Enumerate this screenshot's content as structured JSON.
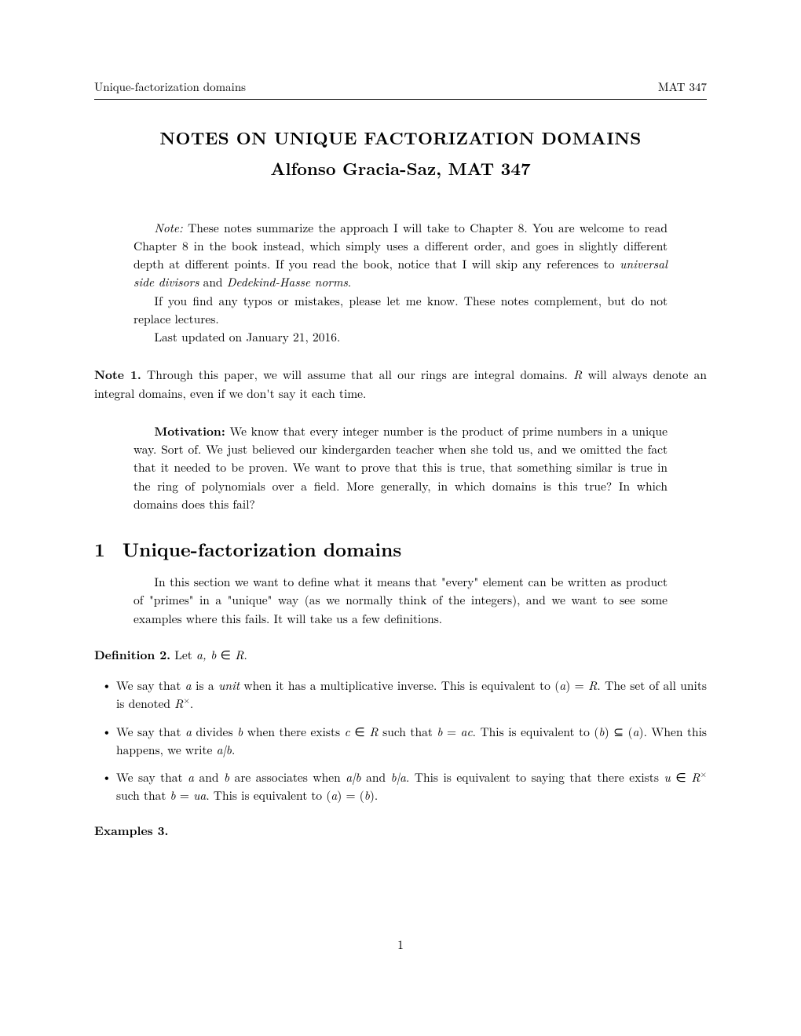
{
  "header": {
    "left": "Unique-factorization domains",
    "right": "MAT 347"
  },
  "title": "NOTES ON UNIQUE FACTORIZATION DOMAINS",
  "author": "Alfonso Gracia-Saz, MAT 347",
  "note_block": {
    "p1_prefix": "Note:",
    "p1_body": " These notes summarize the approach I will take to Chapter 8. You are welcome to read Chapter 8 in the book instead, which simply uses a different order, and goes in slightly different depth at different points. If you read the book, notice that I will skip any references to ",
    "p1_ital1": "universal side divisors",
    "p1_mid": " and ",
    "p1_ital2": "Dedekind-Hasse norms",
    "p1_end": ".",
    "p2": "If you find any typos or mistakes, please let me know. These notes complement, but do not replace lectures.",
    "p3": "Last updated on January 21, 2016."
  },
  "note1": {
    "label": "Note 1.",
    "body_a": " Through this paper, we will assume that all our rings are integral domains. ",
    "R": "R",
    "body_b": " will always denote an integral domains, even if we don't say it each time."
  },
  "motivation": {
    "label": "Motivation:",
    "body": " We know that every integer number is the product of prime numbers in a unique way. Sort of. We just believed our kindergarden teacher when she told us, and we omitted the fact that it needed to be proven. We want to prove that this is true, that something similar is true in the ring of polynomials over a field. More generally, in which domains is this true? In which domains does this fail?"
  },
  "section1": {
    "num": "1",
    "title": "Unique-factorization domains",
    "intro": "In this section we want to define what it means that \"every\" element can be written as product of \"primes\" in a \"unique\" way (as we normally think of the integers), and we want to see some examples where this fails. It will take us a few definitions."
  },
  "def2": {
    "label": "Definition 2.",
    "text_a": " Let ",
    "ab": "a, b",
    "text_b": " ∈ ",
    "R": "R",
    "text_c": "."
  },
  "bullets": {
    "b1_a": "We say that ",
    "a": "a",
    "b1_b": " is a ",
    "unit": "unit",
    "b1_c": " when it has a multiplicative inverse. This is equivalent to (",
    "b1_d": ") = ",
    "R": "R",
    "b1_e": ". The set of all units is denoted ",
    "Rx": "R",
    "times": "×",
    "b1_f": ".",
    "b2_a": "We say that ",
    "b2_b": " divides ",
    "b": "b",
    "b2_c": " when there exists ",
    "c": "c",
    "b2_d": " ∈ ",
    "b2_e": " such that ",
    "b2_f": " = ",
    "ac": "ac",
    "b2_g": ". This is equivalent to (",
    "b2_h": ") ⊆ (",
    "b2_i": "). When this happens, we write ",
    "adb": "a|b",
    "b2_j": ".",
    "b3_a": "We say that ",
    "b3_b": " and ",
    "b3_c": " are associates when ",
    "b3_d": " and ",
    "bda": "b|a",
    "b3_e": ". This is equivalent to saying that there exists ",
    "u": "u",
    "b3_f": " ∈ ",
    "b3_g": " such that ",
    "b3_h": " = ",
    "ua": "ua",
    "b3_i": ". This is equivalent to (",
    "b3_j": ") = (",
    "b3_k": ")."
  },
  "ex3": {
    "label": "Examples 3."
  },
  "pagenum": "1"
}
